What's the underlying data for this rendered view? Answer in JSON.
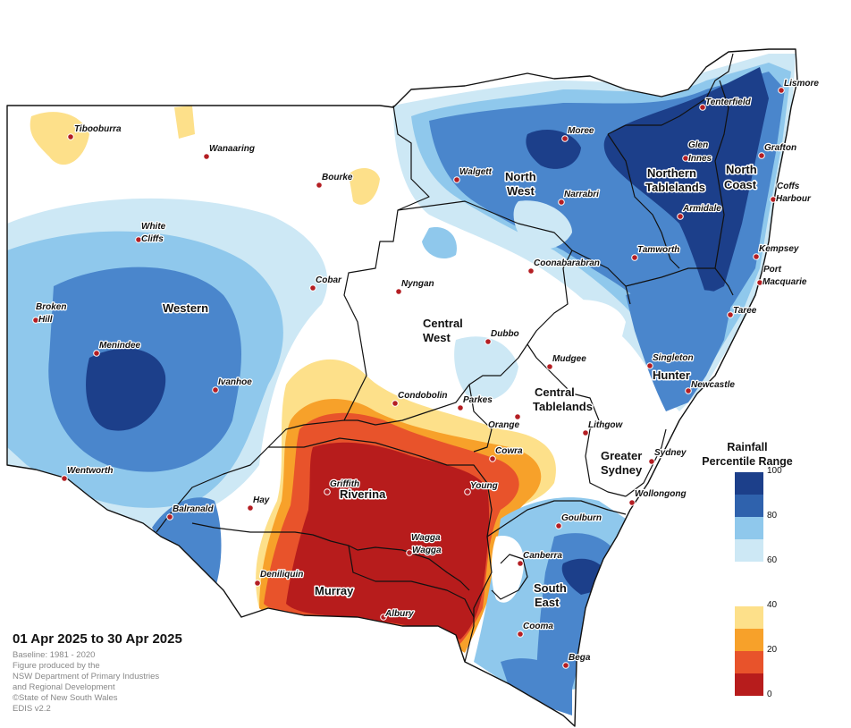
{
  "colors": {
    "p0_20": "#b71c1c",
    "p20_30": "#e8532b",
    "p30_40": "#f7a12a",
    "p40_60_light": "#fde08a",
    "p40_60": "#ffffff",
    "p60_70": "#cde8f5",
    "p70_80": "#8fc8ec",
    "p80_90": "#3b7cc6",
    "p90_100": "#1c3f8a"
  },
  "legend": {
    "title_line1": "Rainfall",
    "title_line2": "Percentile Range",
    "ticks": [
      "100",
      "80",
      "60",
      "40",
      "20",
      "0"
    ],
    "swatches": [
      "#1c3f8a",
      "#4a86cc",
      "#9ccef1",
      "#ffffff",
      "#fde08a",
      "#f7a12a",
      "#e8532b",
      "#b71c1c"
    ]
  },
  "title": "01 Apr 2025 to 30 Apr 2025",
  "credits": [
    "Baseline: 1981 - 2020",
    "Figure produced by the",
    "NSW Department of Primary Industries",
    "and Regional Development",
    "©State of New South Wales",
    "EDIS v2.2"
  ],
  "regions": {
    "western": "Western",
    "north_west_1": "North",
    "north_west_2": "West",
    "northern_tablelands_1": "Northern",
    "northern_tablelands_2": "Tablelands",
    "north_coast_1": "North",
    "north_coast_2": "Coast",
    "central_west_1": "Central",
    "central_west_2": "West",
    "central_tablelands_1": "Central",
    "central_tablelands_2": "Tablelands",
    "hunter": "Hunter",
    "greater_sydney_1": "Greater",
    "greater_sydney_2": "Sydney",
    "riverina": "Riverina",
    "murray": "Murray",
    "south_east_1": "South",
    "south_east_2": "East"
  },
  "towns": {
    "tibooburra": "Tibooburra",
    "wanaaring": "Wanaaring",
    "bourke": "Bourke",
    "white": "White",
    "cliffs": "Cliffs",
    "cobar": "Cobar",
    "broken": "Broken",
    "hill": "Hill",
    "menindee": "Menindee",
    "ivanhoe": "Ivanhoe",
    "wentworth": "Wentworth",
    "balranald": "Balranald",
    "hay": "Hay",
    "deniliquin": "Deniliquin",
    "griffith": "Griffith",
    "wagga1": "Wagga",
    "wagga2": "Wagga",
    "albury": "Albury",
    "young": "Young",
    "cowra": "Cowra",
    "parkes": "Parkes",
    "orange": "Orange",
    "condobolin": "Condobolin",
    "nyngan": "Nyngan",
    "dubbo": "Dubbo",
    "mudgee": "Mudgee",
    "lithgow": "Lithgow",
    "sydney": "Sydney",
    "wollongong": "Wollongong",
    "goulburn": "Goulburn",
    "canberra": "Canberra",
    "cooma": "Cooma",
    "bega": "Bega",
    "walgett": "Walgett",
    "moree": "Moree",
    "narrabri": "Narrabri",
    "coonabarabran": "Coonabarabran",
    "tamworth": "Tamworth",
    "armidale": "Armidale",
    "glen": "Glen",
    "innes": "Innes",
    "tenterfield": "Tenterfield",
    "lismore": "Lismore",
    "grafton": "Grafton",
    "coffs": "Coffs",
    "harbour": "Harbour",
    "kempsey": "Kempsey",
    "port": "Port",
    "macquarie": "Macquarie",
    "taree": "Taree",
    "singleton": "Singleton",
    "newcastle": "Newcastle"
  }
}
